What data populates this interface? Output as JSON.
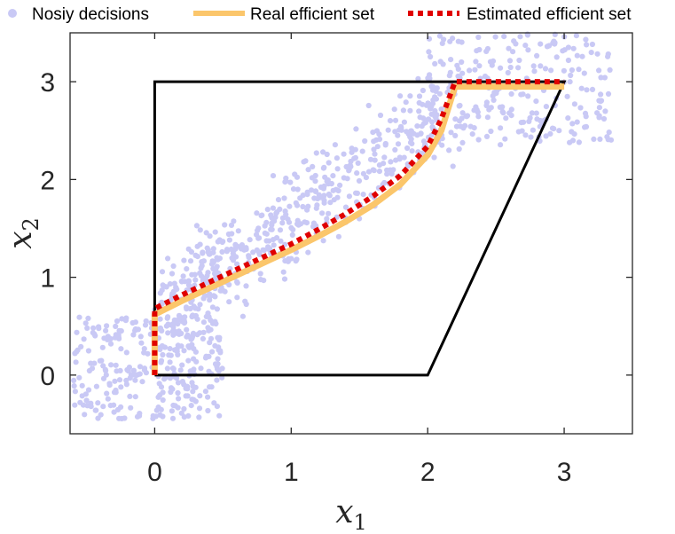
{
  "chart_data": {
    "type": "scatter",
    "title": "",
    "xlabel": "x",
    "xlabel_sub": "1",
    "ylabel": "x",
    "ylabel_sub": "2",
    "xlim": [
      -0.62,
      3.5
    ],
    "ylim": [
      -0.6,
      3.5
    ],
    "xticks": [
      0,
      1,
      2,
      3
    ],
    "yticks": [
      0,
      1,
      2,
      3
    ],
    "grid": false,
    "legend_position": "top",
    "legend": [
      {
        "label": "Nosiy decisions",
        "style": "marker"
      },
      {
        "label": "Real efficient set",
        "style": "solid"
      },
      {
        "label": "Estimated efficient set",
        "style": "dotted"
      }
    ],
    "colors": {
      "noisy": "#c9c9f5",
      "real": "#fbc66b",
      "estimated": "#e00000",
      "region": "#000000",
      "axes": "#262626"
    },
    "feasible_region": {
      "x": [
        0,
        2,
        3,
        0,
        0
      ],
      "y": [
        0,
        0,
        3,
        3,
        0
      ]
    },
    "series": [
      {
        "name": "Real efficient set",
        "x": [
          0,
          0,
          0.2,
          0.4,
          0.6,
          0.8,
          1.0,
          1.2,
          1.4,
          1.6,
          1.8,
          2.0,
          2.1,
          2.2,
          3.0
        ],
        "y": [
          0,
          0.62,
          0.76,
          0.89,
          1.02,
          1.15,
          1.28,
          1.42,
          1.57,
          1.74,
          1.95,
          2.25,
          2.5,
          2.95,
          2.95
        ]
      },
      {
        "name": "Estimated efficient set",
        "x": [
          0,
          0,
          0.2,
          0.4,
          0.6,
          0.8,
          1.0,
          1.2,
          1.4,
          1.6,
          1.8,
          2.0,
          2.1,
          2.2,
          3.0
        ],
        "y": [
          0,
          0.68,
          0.82,
          0.95,
          1.08,
          1.21,
          1.34,
          1.49,
          1.65,
          1.83,
          2.04,
          2.34,
          2.62,
          3.0,
          3.0
        ]
      }
    ],
    "noisy_clusters": [
      {
        "x": [
          -0.6,
          0.5
        ],
        "y": [
          -0.45,
          0.6
        ],
        "count": 280
      },
      {
        "x": [
          0.0,
          0.5
        ],
        "y": [
          0.1,
          1.3
        ],
        "count": 90
      },
      {
        "trend": [
          [
            0.2,
            0.8
          ],
          [
            2.2,
            2.8
          ]
        ],
        "spread": 0.4,
        "count": 480
      },
      {
        "x": [
          2.0,
          3.35
        ],
        "y": [
          2.35,
          3.5
        ],
        "count": 230
      }
    ]
  }
}
